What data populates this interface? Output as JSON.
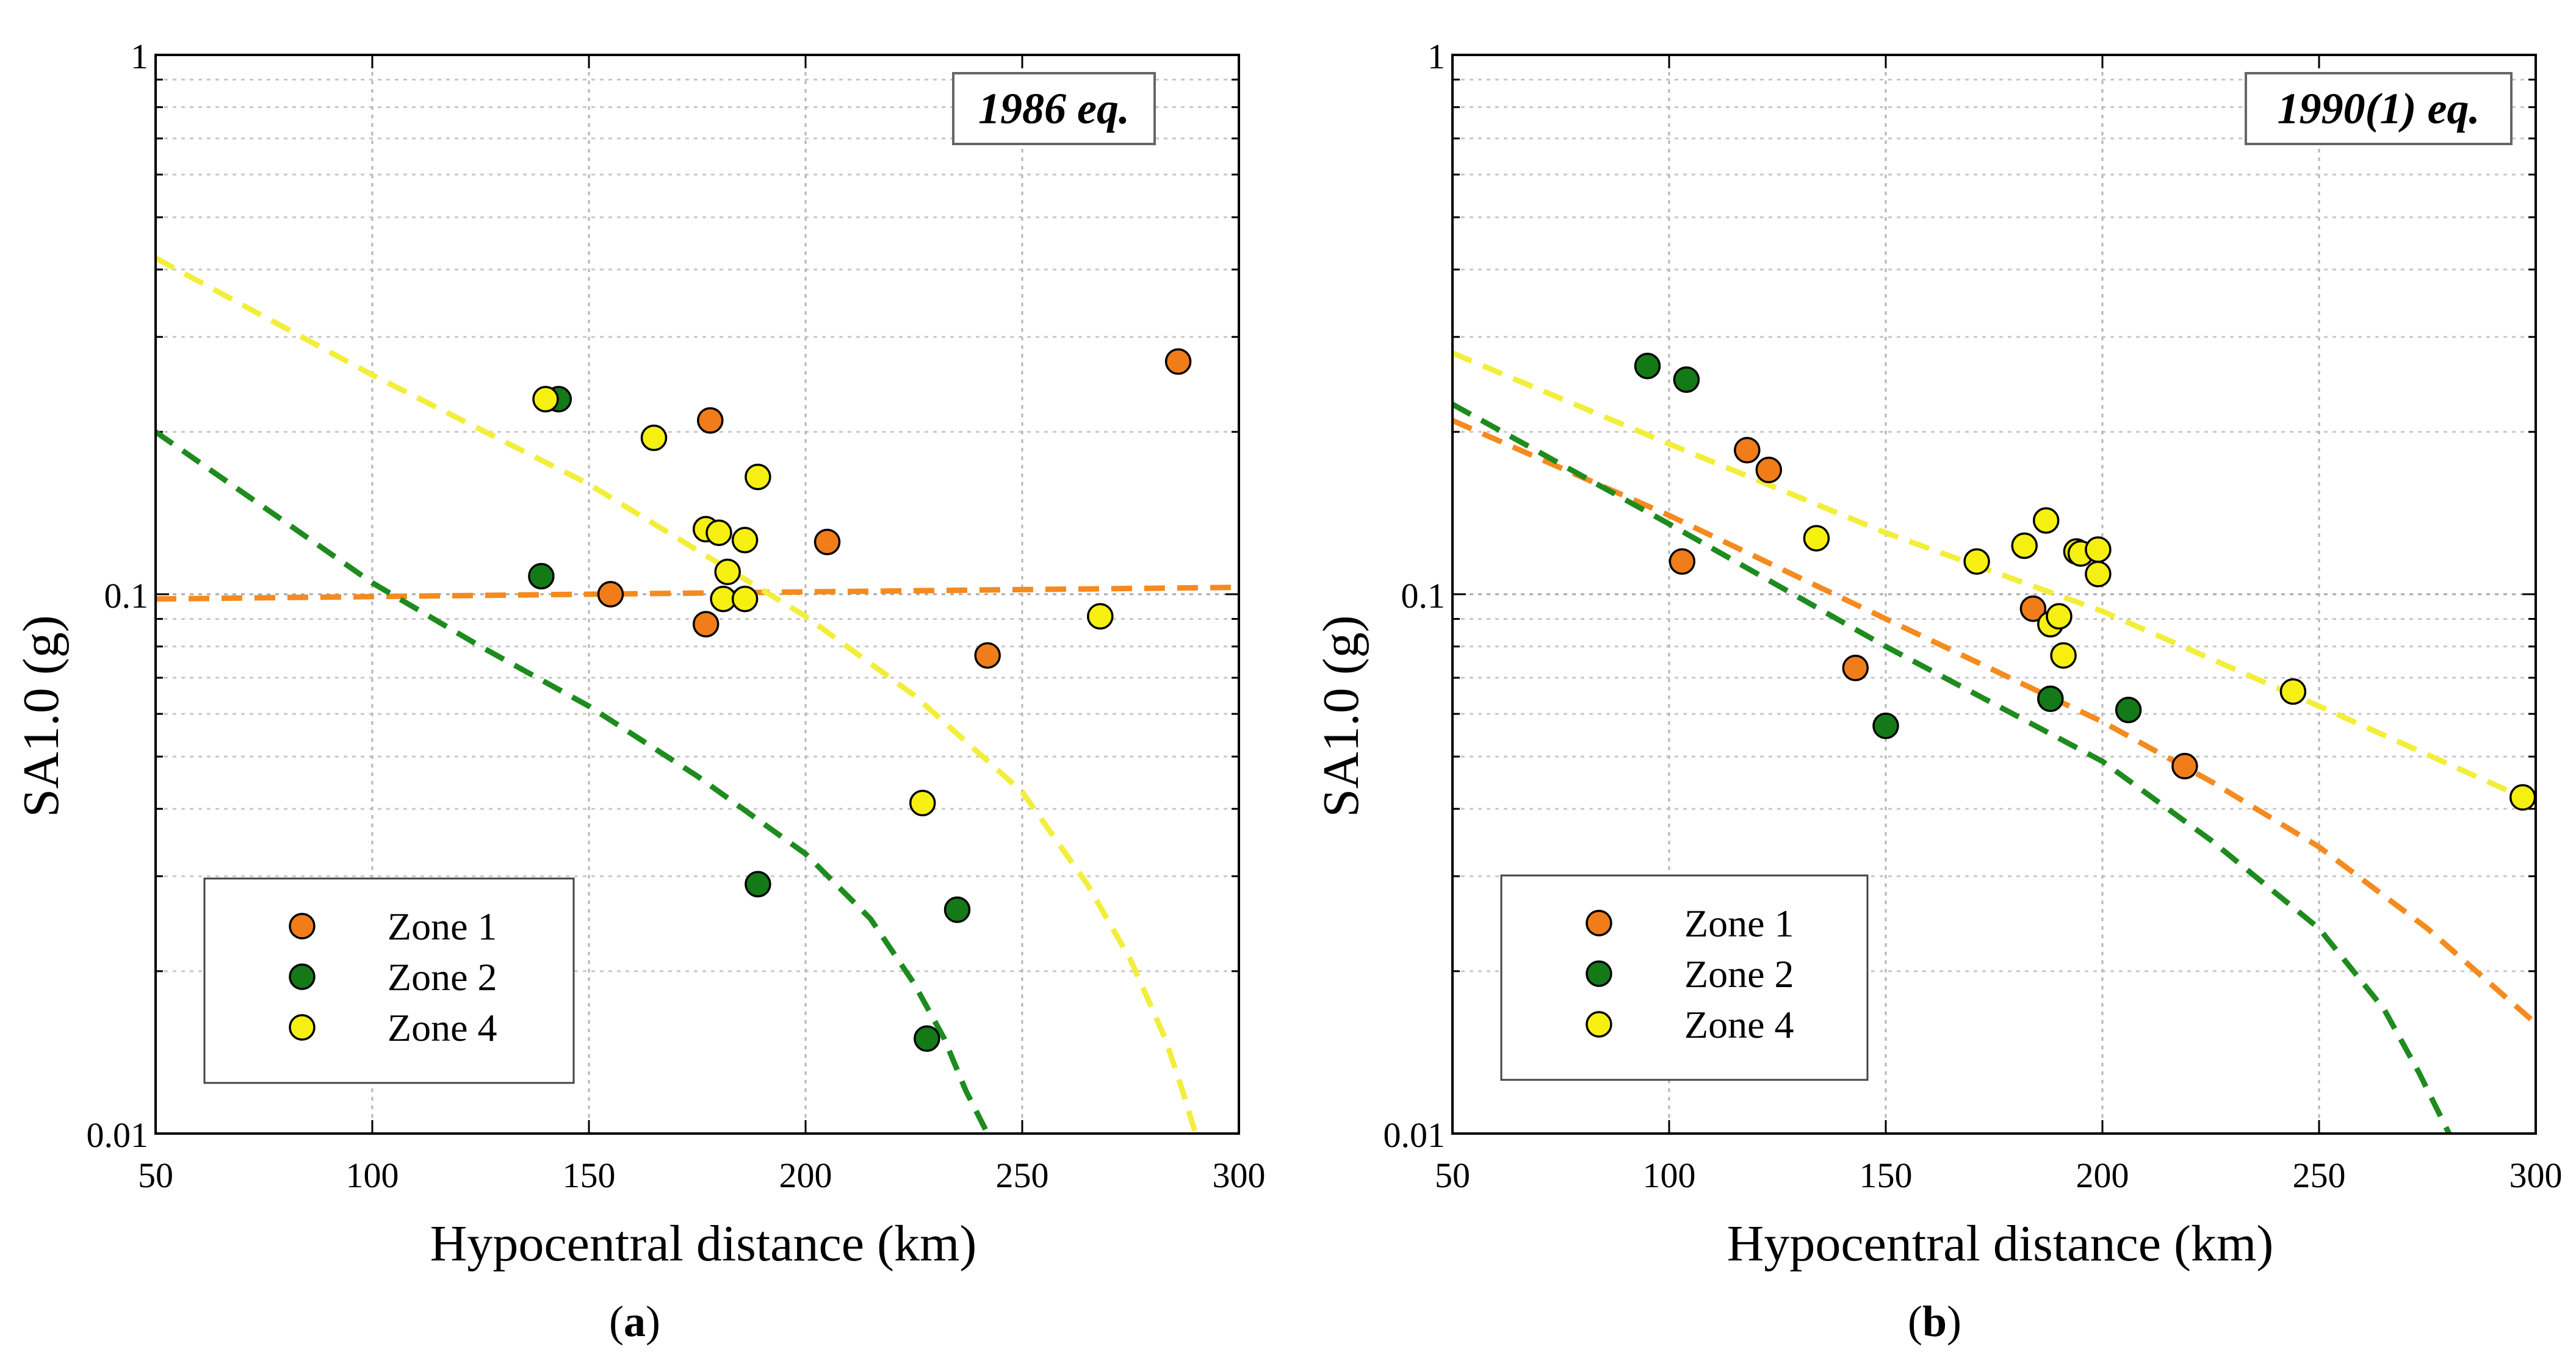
{
  "chart_data": [
    {
      "type": "scatter",
      "panel": "(a)",
      "panel_letter": "a",
      "event_label": "1986 eq.",
      "xlabel": "Hypocentral distance (km)",
      "ylabel": "SA1.0 (g)",
      "xlim": [
        50,
        300
      ],
      "ylim": [
        0.01,
        1
      ],
      "yscale": "log",
      "x_ticks": [
        50,
        100,
        150,
        200,
        250,
        300
      ],
      "x_tick_labels": [
        "50",
        "100",
        "150",
        "200",
        "250",
        "300"
      ],
      "y_ticks": [
        0.01,
        0.1,
        1
      ],
      "y_tick_labels": [
        "0.01",
        "0.1",
        "1"
      ],
      "grid": true,
      "legend_position": "bottom-left",
      "series": [
        {
          "name": "Zone 1",
          "color": "#F07D1A",
          "line_color": "#F58A1F",
          "points": [
            [
              155,
              0.1
            ],
            [
              177,
              0.088
            ],
            [
              178,
              0.21
            ],
            [
              205,
              0.125
            ],
            [
              242,
              0.077
            ],
            [
              286,
              0.27
            ]
          ],
          "fit": [
            [
              50,
              0.098
            ],
            [
              100,
              0.099
            ],
            [
              150,
              0.1
            ],
            [
              200,
              0.101
            ],
            [
              250,
              0.102
            ],
            [
              300,
              0.103
            ]
          ]
        },
        {
          "name": "Zone 2",
          "color": "#137A17",
          "line_color": "#1E8B1E",
          "points": [
            [
              139,
              0.108
            ],
            [
              143,
              0.23
            ],
            [
              189,
              0.029
            ],
            [
              228,
              0.015
            ],
            [
              235,
              0.026
            ]
          ],
          "fit": [
            [
              50,
              0.2
            ],
            [
              75,
              0.145
            ],
            [
              100,
              0.105
            ],
            [
              125,
              0.08
            ],
            [
              150,
              0.062
            ],
            [
              175,
              0.046
            ],
            [
              200,
              0.033
            ],
            [
              215,
              0.025
            ],
            [
              225,
              0.019
            ],
            [
              232,
              0.015
            ],
            [
              237,
              0.012
            ],
            [
              242,
              0.01
            ]
          ]
        },
        {
          "name": "Zone 4",
          "color": "#F5F00F",
          "line_color": "#F2EE3A",
          "points": [
            [
              140,
              0.23
            ],
            [
              165,
              0.195
            ],
            [
              177,
              0.132
            ],
            [
              180,
              0.13
            ],
            [
              182,
              0.11
            ],
            [
              181,
              0.098
            ],
            [
              186,
              0.098
            ],
            [
              186,
              0.126
            ],
            [
              189,
              0.165
            ],
            [
              227,
              0.041
            ],
            [
              268,
              0.091
            ]
          ],
          "fit": [
            [
              50,
              0.42
            ],
            [
              100,
              0.255
            ],
            [
              150,
              0.16
            ],
            [
              200,
              0.091
            ],
            [
              225,
              0.065
            ],
            [
              250,
              0.043
            ],
            [
              265,
              0.029
            ],
            [
              275,
              0.021
            ],
            [
              283,
              0.015
            ],
            [
              287,
              0.012
            ],
            [
              290,
              0.01
            ]
          ]
        }
      ]
    },
    {
      "type": "scatter",
      "panel": "(b)",
      "panel_letter": "b",
      "event_label": "1990(1) eq.",
      "xlabel": "Hypocentral distance (km)",
      "ylabel": "SA1.0 (g)",
      "xlim": [
        50,
        300
      ],
      "ylim": [
        0.01,
        1
      ],
      "yscale": "log",
      "x_ticks": [
        50,
        100,
        150,
        200,
        250,
        300
      ],
      "x_tick_labels": [
        "50",
        "100",
        "150",
        "200",
        "250",
        "300"
      ],
      "y_ticks": [
        0.01,
        0.1,
        1
      ],
      "y_tick_labels": [
        "0.01",
        "0.1",
        "1"
      ],
      "grid": true,
      "legend_position": "bottom-left",
      "series": [
        {
          "name": "Zone 1",
          "color": "#F07D1A",
          "line_color": "#F58A1F",
          "points": [
            [
              103,
              0.115
            ],
            [
              118,
              0.185
            ],
            [
              123,
              0.17
            ],
            [
              143,
              0.073
            ],
            [
              184,
              0.094
            ],
            [
              219,
              0.048
            ]
          ],
          "fit": [
            [
              50,
              0.21
            ],
            [
              100,
              0.14
            ],
            [
              150,
              0.09
            ],
            [
              200,
              0.058
            ],
            [
              225,
              0.045
            ],
            [
              250,
              0.034
            ],
            [
              275,
              0.024
            ],
            [
              300,
              0.016
            ]
          ]
        },
        {
          "name": "Zone 2",
          "color": "#137A17",
          "line_color": "#1E8B1E",
          "points": [
            [
              95,
              0.265
            ],
            [
              104,
              0.25
            ],
            [
              150,
              0.057
            ],
            [
              188,
              0.064
            ],
            [
              206,
              0.061
            ]
          ],
          "fit": [
            [
              50,
              0.225
            ],
            [
              100,
              0.135
            ],
            [
              150,
              0.08
            ],
            [
              200,
              0.049
            ],
            [
              225,
              0.035
            ],
            [
              250,
              0.024
            ],
            [
              265,
              0.017
            ],
            [
              273,
              0.013
            ],
            [
              280,
              0.01
            ]
          ]
        },
        {
          "name": "Zone 4",
          "color": "#F5F00F",
          "line_color": "#F2EE3A",
          "points": [
            [
              134,
              0.127
            ],
            [
              171,
              0.115
            ],
            [
              182,
              0.123
            ],
            [
              187,
              0.137
            ],
            [
              188,
              0.088
            ],
            [
              190,
              0.091
            ],
            [
              191,
              0.077
            ],
            [
              194,
              0.12
            ],
            [
              195,
              0.119
            ],
            [
              199,
              0.121
            ],
            [
              199,
              0.109
            ],
            [
              244,
              0.066
            ],
            [
              297,
              0.042
            ]
          ],
          "fit": [
            [
              50,
              0.28
            ],
            [
              100,
              0.19
            ],
            [
              150,
              0.13
            ],
            [
              200,
              0.093
            ],
            [
              250,
              0.062
            ],
            [
              300,
              0.041
            ]
          ]
        }
      ]
    }
  ]
}
